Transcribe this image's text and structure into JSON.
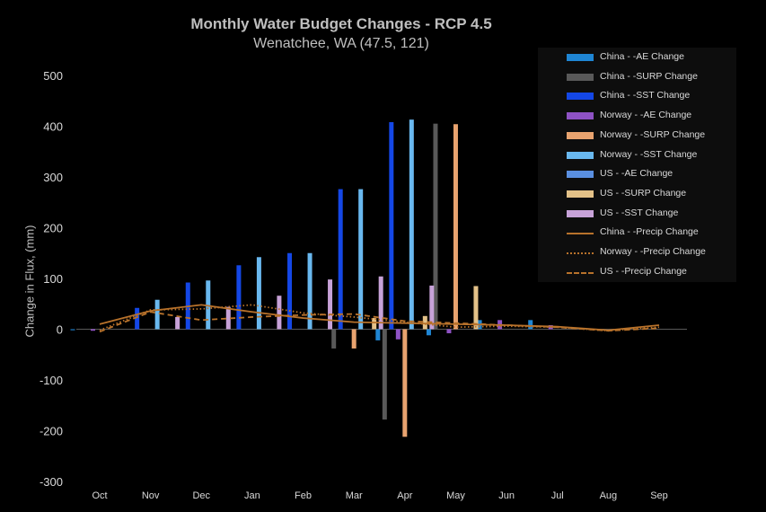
{
  "chart_data": {
    "type": "bar",
    "title": "Monthly Water Budget Changes - RCP 4.5",
    "subtitle": "Wenatchee, WA (47.5, 121)",
    "ylabel": "Change in Flux, (mm)",
    "ylim": [
      -300,
      500
    ],
    "yticks": [
      500,
      400,
      300,
      200,
      100,
      0,
      -100,
      -200,
      -300
    ],
    "categories": [
      "Oct",
      "Nov",
      "Dec",
      "Jan",
      "Feb",
      "Mar",
      "Apr",
      "May",
      "Jun",
      "Jul",
      "Aug",
      "Sep"
    ],
    "grid": false,
    "legend_position": "top-right",
    "bar_series": [
      {
        "name": "China - -AE Change",
        "color": "#1f86d4",
        "values": [
          -2,
          0,
          0,
          0,
          0,
          0,
          -22,
          -12,
          18,
          18,
          0,
          0
        ]
      },
      {
        "name": "China - -SURP Change",
        "color": "#595959",
        "values": [
          0,
          0,
          0,
          0,
          0,
          -38,
          -178,
          405,
          0,
          0,
          0,
          0
        ]
      },
      {
        "name": "China - -SST Change",
        "color": "#1447e6",
        "values": [
          0,
          42,
          92,
          126,
          150,
          276,
          408,
          0,
          0,
          0,
          0,
          0
        ]
      },
      {
        "name": "Norway - -AE Change",
        "color": "#8e52c4",
        "values": [
          -3,
          0,
          0,
          0,
          0,
          0,
          -20,
          -8,
          18,
          8,
          -2,
          0
        ]
      },
      {
        "name": "Norway - -SURP Change",
        "color": "#e8a36f",
        "values": [
          0,
          0,
          0,
          0,
          0,
          -38,
          -212,
          404,
          0,
          0,
          0,
          0
        ]
      },
      {
        "name": "Norway - -SST Change",
        "color": "#69b8ef",
        "values": [
          0,
          58,
          96,
          142,
          150,
          276,
          413,
          0,
          0,
          0,
          0,
          0
        ]
      },
      {
        "name": "US - -AE Change",
        "color": "#5a8fe0",
        "values": [
          0,
          0,
          0,
          0,
          0,
          0,
          0,
          0,
          0,
          0,
          0,
          0
        ]
      },
      {
        "name": "US - -SURP Change",
        "color": "#e3c188",
        "values": [
          0,
          0,
          0,
          0,
          0,
          22,
          26,
          85,
          0,
          0,
          0,
          0
        ]
      },
      {
        "name": "US - -SST Change",
        "color": "#c7a2d8",
        "values": [
          0,
          24,
          44,
          66,
          98,
          104,
          86,
          0,
          0,
          0,
          0,
          0
        ]
      }
    ],
    "line_series": [
      {
        "name": "China - -Precip Change",
        "color": "#b8722b",
        "dash": "solid",
        "values": [
          10,
          36,
          48,
          34,
          22,
          14,
          12,
          10,
          8,
          5,
          -2,
          8
        ]
      },
      {
        "name": "Norway - -Precip Change",
        "color": "#b8722b",
        "dash": "dotted",
        "values": [
          -2,
          38,
          40,
          48,
          32,
          24,
          14,
          4,
          6,
          4,
          -3,
          4
        ]
      },
      {
        "name": "US - -Precip Change",
        "color": "#b8722b",
        "dash": "dashed",
        "values": [
          -5,
          34,
          18,
          24,
          28,
          30,
          16,
          12,
          8,
          4,
          -3,
          2
        ]
      }
    ]
  }
}
